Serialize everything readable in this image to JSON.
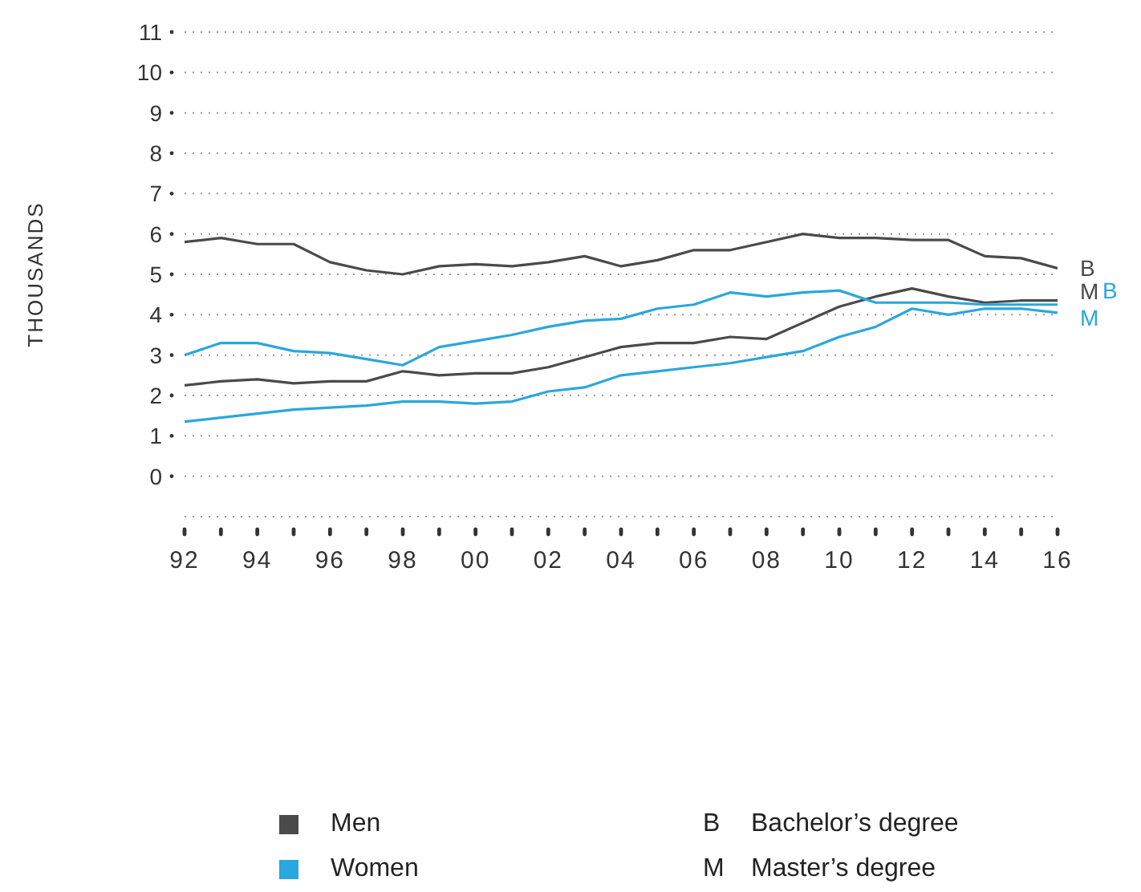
{
  "chart_data": {
    "type": "line",
    "ylabel": "THOUSANDS",
    "x": [
      1992,
      1993,
      1994,
      1995,
      1996,
      1997,
      1998,
      1999,
      2000,
      2001,
      2002,
      2003,
      2004,
      2005,
      2006,
      2007,
      2008,
      2009,
      2010,
      2011,
      2012,
      2013,
      2014,
      2015,
      2016
    ],
    "series": [
      {
        "name": "B",
        "color": "#4a4a4a",
        "values": [
          5.8,
          5.9,
          5.75,
          5.75,
          5.3,
          5.1,
          5.0,
          5.2,
          5.25,
          5.2,
          5.3,
          5.45,
          5.2,
          5.35,
          5.6,
          5.6,
          5.8,
          6.0,
          5.9,
          5.9,
          5.85,
          5.85,
          5.45,
          5.4,
          5.15
        ]
      },
      {
        "name": "M",
        "color": "#4a4a4a",
        "values": [
          2.25,
          2.35,
          2.4,
          2.3,
          2.35,
          2.35,
          2.6,
          2.5,
          2.55,
          2.55,
          2.7,
          2.95,
          3.2,
          3.3,
          3.3,
          3.45,
          3.4,
          3.8,
          4.2,
          4.45,
          4.65,
          4.45,
          4.3,
          4.35,
          4.35
        ]
      },
      {
        "name": "B",
        "color": "#2aa7dc",
        "values": [
          3.0,
          3.3,
          3.3,
          3.1,
          3.05,
          2.9,
          2.75,
          3.2,
          3.35,
          3.5,
          3.7,
          3.85,
          3.9,
          4.15,
          4.25,
          4.55,
          4.45,
          4.55,
          4.6,
          4.3,
          4.3,
          4.3,
          4.25,
          4.25,
          4.25
        ]
      },
      {
        "name": "M",
        "color": "#2aa7dc",
        "values": [
          1.35,
          1.45,
          1.55,
          1.65,
          1.7,
          1.75,
          1.85,
          1.85,
          1.8,
          1.85,
          2.1,
          2.2,
          2.5,
          2.6,
          2.7,
          2.8,
          2.95,
          3.1,
          3.45,
          3.7,
          4.15,
          4.0,
          4.15,
          4.15,
          4.05
        ]
      }
    ],
    "xlim": [
      1992,
      2016
    ],
    "xticks": [
      {
        "value": 1992,
        "label": "92"
      },
      {
        "value": 1993,
        "label": null
      },
      {
        "value": 1994,
        "label": "94"
      },
      {
        "value": 1995,
        "label": null
      },
      {
        "value": 1996,
        "label": "96"
      },
      {
        "value": 1997,
        "label": null
      },
      {
        "value": 1998,
        "label": "98"
      },
      {
        "value": 1999,
        "label": null
      },
      {
        "value": 2000,
        "label": "00"
      },
      {
        "value": 2001,
        "label": null
      },
      {
        "value": 2002,
        "label": "02"
      },
      {
        "value": 2003,
        "label": null
      },
      {
        "value": 2004,
        "label": "04"
      },
      {
        "value": 2005,
        "label": null
      },
      {
        "value": 2006,
        "label": "06"
      },
      {
        "value": 2007,
        "label": null
      },
      {
        "value": 2008,
        "label": "08"
      },
      {
        "value": 2009,
        "label": null
      },
      {
        "value": 2010,
        "label": "10"
      },
      {
        "value": 2011,
        "label": null
      },
      {
        "value": 2012,
        "label": "12"
      },
      {
        "value": 2013,
        "label": null
      },
      {
        "value": 2014,
        "label": "14"
      },
      {
        "value": 2015,
        "label": null
      },
      {
        "value": 2016,
        "label": "16"
      }
    ],
    "ylim": [
      -1,
      11
    ],
    "yticks": [
      0,
      1,
      2,
      3,
      4,
      5,
      6,
      7,
      8,
      9,
      10,
      11
    ],
    "grid": "y",
    "marker": "none",
    "line_style": "solid",
    "annotations": [
      "Men",
      "Women",
      "B",
      "Bachelor’s degree",
      "M",
      "Master’s degree"
    ]
  }
}
